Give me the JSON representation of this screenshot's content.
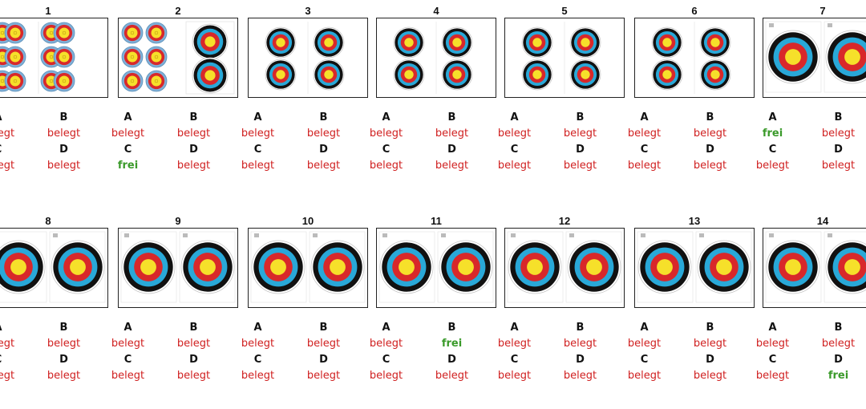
{
  "colors": {
    "busy": "#d02020",
    "free": "#3a9a2a",
    "gold": "#f6e02a",
    "red": "#d8282a",
    "blue": "#29a8d8",
    "black": "#111111"
  },
  "lanes": [
    {
      "number": "1",
      "face": "triple-vertical-3x2",
      "slots": [
        {
          "letter": "A",
          "status": "belegt",
          "free": false
        },
        {
          "letter": "B",
          "status": "belegt",
          "free": false
        },
        {
          "letter": "C",
          "status": "belegt",
          "free": false
        },
        {
          "letter": "D",
          "status": "belegt",
          "free": false
        }
      ]
    },
    {
      "number": "2",
      "face": "triple-and-80cm-pair",
      "slots": [
        {
          "letter": "A",
          "status": "belegt",
          "free": false
        },
        {
          "letter": "B",
          "status": "belegt",
          "free": false
        },
        {
          "letter": "C",
          "status": "frei",
          "free": true
        },
        {
          "letter": "D",
          "status": "belegt",
          "free": false
        }
      ]
    },
    {
      "number": "3",
      "face": "quad-40cm",
      "slots": [
        {
          "letter": "A",
          "status": "belegt",
          "free": false
        },
        {
          "letter": "B",
          "status": "belegt",
          "free": false
        },
        {
          "letter": "C",
          "status": "belegt",
          "free": false
        },
        {
          "letter": "D",
          "status": "belegt",
          "free": false
        }
      ]
    },
    {
      "number": "4",
      "face": "quad-40cm",
      "slots": [
        {
          "letter": "A",
          "status": "belegt",
          "free": false
        },
        {
          "letter": "B",
          "status": "belegt",
          "free": false
        },
        {
          "letter": "C",
          "status": "belegt",
          "free": false
        },
        {
          "letter": "D",
          "status": "belegt",
          "free": false
        }
      ]
    },
    {
      "number": "5",
      "face": "quad-40cm",
      "slots": [
        {
          "letter": "A",
          "status": "belegt",
          "free": false
        },
        {
          "letter": "B",
          "status": "belegt",
          "free": false
        },
        {
          "letter": "C",
          "status": "belegt",
          "free": false
        },
        {
          "letter": "D",
          "status": "belegt",
          "free": false
        }
      ]
    },
    {
      "number": "6",
      "face": "quad-40cm",
      "slots": [
        {
          "letter": "A",
          "status": "belegt",
          "free": false
        },
        {
          "letter": "B",
          "status": "belegt",
          "free": false
        },
        {
          "letter": "C",
          "status": "belegt",
          "free": false
        },
        {
          "letter": "D",
          "status": "belegt",
          "free": false
        }
      ]
    },
    {
      "number": "7",
      "face": "double-80cm",
      "slots": [
        {
          "letter": "A",
          "status": "frei",
          "free": true
        },
        {
          "letter": "B",
          "status": "belegt",
          "free": false
        },
        {
          "letter": "C",
          "status": "belegt",
          "free": false
        },
        {
          "letter": "D",
          "status": "belegt",
          "free": false
        }
      ]
    },
    {
      "number": "8",
      "face": "double-80cm",
      "slots": [
        {
          "letter": "A",
          "status": "belegt",
          "free": false
        },
        {
          "letter": "B",
          "status": "belegt",
          "free": false
        },
        {
          "letter": "C",
          "status": "belegt",
          "free": false
        },
        {
          "letter": "D",
          "status": "belegt",
          "free": false
        }
      ]
    },
    {
      "number": "9",
      "face": "double-80cm",
      "slots": [
        {
          "letter": "A",
          "status": "belegt",
          "free": false
        },
        {
          "letter": "B",
          "status": "belegt",
          "free": false
        },
        {
          "letter": "C",
          "status": "belegt",
          "free": false
        },
        {
          "letter": "D",
          "status": "belegt",
          "free": false
        }
      ]
    },
    {
      "number": "10",
      "face": "double-80cm",
      "slots": [
        {
          "letter": "A",
          "status": "belegt",
          "free": false
        },
        {
          "letter": "B",
          "status": "belegt",
          "free": false
        },
        {
          "letter": "C",
          "status": "belegt",
          "free": false
        },
        {
          "letter": "D",
          "status": "belegt",
          "free": false
        }
      ]
    },
    {
      "number": "11",
      "face": "double-80cm",
      "slots": [
        {
          "letter": "A",
          "status": "belegt",
          "free": false
        },
        {
          "letter": "B",
          "status": "frei",
          "free": true
        },
        {
          "letter": "C",
          "status": "belegt",
          "free": false
        },
        {
          "letter": "D",
          "status": "belegt",
          "free": false
        }
      ]
    },
    {
      "number": "12",
      "face": "double-80cm",
      "slots": [
        {
          "letter": "A",
          "status": "belegt",
          "free": false
        },
        {
          "letter": "B",
          "status": "belegt",
          "free": false
        },
        {
          "letter": "C",
          "status": "belegt",
          "free": false
        },
        {
          "letter": "D",
          "status": "belegt",
          "free": false
        }
      ]
    },
    {
      "number": "13",
      "face": "double-80cm",
      "slots": [
        {
          "letter": "A",
          "status": "belegt",
          "free": false
        },
        {
          "letter": "B",
          "status": "belegt",
          "free": false
        },
        {
          "letter": "C",
          "status": "belegt",
          "free": false
        },
        {
          "letter": "D",
          "status": "belegt",
          "free": false
        }
      ]
    },
    {
      "number": "14",
      "face": "double-80cm",
      "slots": [
        {
          "letter": "A",
          "status": "belegt",
          "free": false
        },
        {
          "letter": "B",
          "status": "belegt",
          "free": false
        },
        {
          "letter": "C",
          "status": "belegt",
          "free": false
        },
        {
          "letter": "D",
          "status": "frei",
          "free": true
        }
      ]
    }
  ]
}
